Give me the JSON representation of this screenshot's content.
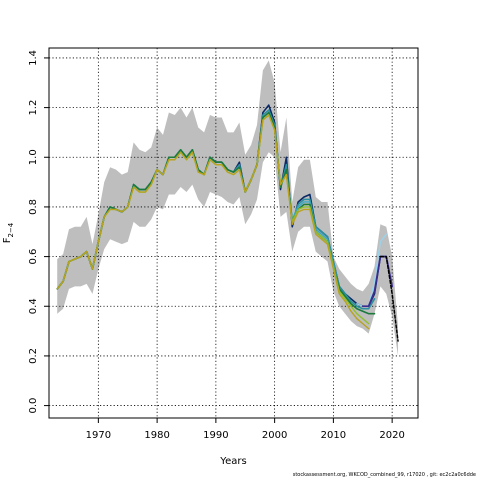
{
  "chart_data": {
    "type": "line",
    "xlabel": "Years",
    "ylabel_main": "F",
    "ylabel_sub": "2−4",
    "xlim": [
      1961.6,
      2024.4
    ],
    "ylim": [
      -0.05,
      1.44
    ],
    "x_ticks": [
      1970,
      1980,
      1990,
      2000,
      2010,
      2020
    ],
    "x_tick_labels": [
      "1970",
      "1980",
      "1990",
      "2000",
      "2010",
      "2020"
    ],
    "y_ticks": [
      0.0,
      0.2,
      0.4,
      0.6,
      0.8,
      1.0,
      1.2,
      1.4
    ],
    "y_tick_labels": [
      "0.0",
      "0.2",
      "0.4",
      "0.6",
      "0.8",
      "1.0",
      "1.2",
      "1.4"
    ],
    "grid": true,
    "band_color": "#bebebe",
    "band": {
      "x": [
        1963,
        1964,
        1965,
        1966,
        1967,
        1968,
        1969,
        1970,
        1971,
        1972,
        1973,
        1974,
        1975,
        1976,
        1977,
        1978,
        1979,
        1980,
        1981,
        1982,
        1983,
        1984,
        1985,
        1986,
        1987,
        1988,
        1989,
        1990,
        1991,
        1992,
        1993,
        1994,
        1995,
        1996,
        1997,
        1998,
        1999,
        2000,
        2001,
        2002,
        2003,
        2004,
        2005,
        2006,
        2007,
        2008,
        2009,
        2010,
        2011,
        2012,
        2013,
        2014,
        2015,
        2016,
        2017,
        2018,
        2019,
        2020,
        2021
      ],
      "lower": [
        0.37,
        0.39,
        0.47,
        0.48,
        0.48,
        0.49,
        0.45,
        0.55,
        0.63,
        0.67,
        0.66,
        0.65,
        0.66,
        0.74,
        0.72,
        0.72,
        0.75,
        0.8,
        0.79,
        0.85,
        0.85,
        0.88,
        0.86,
        0.89,
        0.83,
        0.8,
        0.86,
        0.85,
        0.84,
        0.82,
        0.81,
        0.84,
        0.73,
        0.77,
        0.83,
        0.98,
        1.02,
        1.0,
        0.76,
        0.78,
        0.62,
        0.7,
        0.72,
        0.72,
        0.62,
        0.6,
        0.58,
        0.46,
        0.4,
        0.37,
        0.34,
        0.32,
        0.31,
        0.29,
        0.37,
        0.48,
        0.45,
        0.36,
        0.2
      ],
      "upper": [
        0.59,
        0.61,
        0.71,
        0.72,
        0.72,
        0.76,
        0.65,
        0.77,
        0.9,
        0.96,
        0.95,
        0.93,
        0.94,
        1.06,
        1.03,
        1.02,
        1.04,
        1.12,
        1.09,
        1.18,
        1.17,
        1.2,
        1.16,
        1.2,
        1.12,
        1.1,
        1.17,
        1.16,
        1.16,
        1.1,
        1.1,
        1.14,
        1.01,
        1.05,
        1.13,
        1.35,
        1.39,
        1.3,
        1.02,
        1.16,
        0.82,
        0.96,
        0.99,
        0.99,
        0.84,
        0.82,
        0.82,
        0.6,
        0.55,
        0.52,
        0.49,
        0.47,
        0.46,
        0.49,
        0.56,
        0.73,
        0.72,
        0.6,
        0.32
      ]
    },
    "series": [
      {
        "color": "#0b2a66",
        "width": 1.6,
        "x": [
          1963,
          1964,
          1965,
          1966,
          1967,
          1968,
          1969,
          1970,
          1971,
          1972,
          1973,
          1974,
          1975,
          1976,
          1977,
          1978,
          1979,
          1980,
          1981,
          1982,
          1983,
          1984,
          1985,
          1986,
          1987,
          1988,
          1989,
          1990,
          1991,
          1992,
          1993,
          1994,
          1995,
          1996,
          1997,
          1998,
          1999,
          2000,
          2001,
          2002,
          2003,
          2004,
          2005,
          2006,
          2007,
          2008,
          2009,
          2010,
          2011,
          2012,
          2013,
          2014,
          2015,
          2016,
          2017,
          2018,
          2019
        ],
        "y": [
          0.47,
          0.5,
          0.58,
          0.59,
          0.6,
          0.62,
          0.55,
          0.66,
          0.76,
          0.8,
          0.79,
          0.78,
          0.8,
          0.89,
          0.87,
          0.87,
          0.9,
          0.95,
          0.93,
          1.0,
          1.0,
          1.03,
          1.0,
          1.03,
          0.95,
          0.93,
          1.0,
          0.98,
          0.98,
          0.95,
          0.94,
          0.98,
          0.86,
          0.91,
          0.97,
          1.18,
          1.21,
          1.14,
          0.87,
          1.0,
          0.72,
          0.82,
          0.84,
          0.85,
          0.72,
          0.7,
          0.68,
          0.58,
          0.48,
          0.45,
          0.43,
          0.41,
          0.4,
          0.4,
          0.45,
          0.6,
          0.6
        ]
      },
      {
        "color": "#2a8f9e",
        "width": 1.6,
        "x": [
          1963,
          1964,
          1965,
          1966,
          1967,
          1968,
          1969,
          1970,
          1971,
          1972,
          1973,
          1974,
          1975,
          1976,
          1977,
          1978,
          1979,
          1980,
          1981,
          1982,
          1983,
          1984,
          1985,
          1986,
          1987,
          1988,
          1989,
          1990,
          1991,
          1992,
          1993,
          1994,
          1995,
          1996,
          1997,
          1998,
          1999,
          2000,
          2001,
          2002,
          2003,
          2004,
          2005,
          2006,
          2007,
          2008,
          2009,
          2010,
          2011,
          2012,
          2013,
          2014,
          2015,
          2016,
          2017
        ],
        "y": [
          0.47,
          0.5,
          0.58,
          0.59,
          0.6,
          0.62,
          0.55,
          0.66,
          0.76,
          0.8,
          0.79,
          0.78,
          0.8,
          0.89,
          0.87,
          0.87,
          0.9,
          0.95,
          0.93,
          1.0,
          1.0,
          1.03,
          1.0,
          1.03,
          0.95,
          0.93,
          1.0,
          0.98,
          0.98,
          0.95,
          0.94,
          0.97,
          0.86,
          0.91,
          0.97,
          1.17,
          1.19,
          1.13,
          0.88,
          0.97,
          0.74,
          0.81,
          0.83,
          0.83,
          0.72,
          0.7,
          0.68,
          0.58,
          0.48,
          0.45,
          0.42,
          0.4,
          0.39,
          0.39,
          0.43
        ]
      },
      {
        "color": "#3aa7c4",
        "width": 1.4,
        "x": [
          1963,
          1964,
          1965,
          1966,
          1967,
          1968,
          1969,
          1970,
          1971,
          1972,
          1973,
          1974,
          1975,
          1976,
          1977,
          1978,
          1979,
          1980,
          1981,
          1982,
          1983,
          1984,
          1985,
          1986,
          1987,
          1988,
          1989,
          1990,
          1991,
          1992,
          1993,
          1994,
          1995,
          1996,
          1997,
          1998,
          1999,
          2000,
          2001,
          2002,
          2003,
          2004,
          2005,
          2006,
          2007,
          2008,
          2009,
          2010,
          2011,
          2012,
          2013,
          2014,
          2015,
          2016
        ],
        "y": [
          0.47,
          0.5,
          0.58,
          0.59,
          0.6,
          0.62,
          0.55,
          0.66,
          0.76,
          0.8,
          0.79,
          0.78,
          0.8,
          0.89,
          0.87,
          0.87,
          0.9,
          0.95,
          0.93,
          1.0,
          1.0,
          1.03,
          1.0,
          1.03,
          0.95,
          0.93,
          1.0,
          0.98,
          0.98,
          0.95,
          0.94,
          0.96,
          0.86,
          0.91,
          0.97,
          1.16,
          1.18,
          1.12,
          0.88,
          0.95,
          0.75,
          0.8,
          0.82,
          0.82,
          0.71,
          0.69,
          0.67,
          0.57,
          0.47,
          0.44,
          0.41,
          0.39,
          0.38,
          0.37
        ]
      },
      {
        "color": "#1e7a3a",
        "width": 1.6,
        "x": [
          1963,
          1964,
          1965,
          1966,
          1967,
          1968,
          1969,
          1970,
          1971,
          1972,
          1973,
          1974,
          1975,
          1976,
          1977,
          1978,
          1979,
          1980,
          1981,
          1982,
          1983,
          1984,
          1985,
          1986,
          1987,
          1988,
          1989,
          1990,
          1991,
          1992,
          1993,
          1994,
          1995,
          1996,
          1997,
          1998,
          1999,
          2000,
          2001,
          2002,
          2003,
          2004,
          2005,
          2006,
          2007,
          2008,
          2009,
          2010,
          2011,
          2012,
          2013,
          2014,
          2015,
          2016,
          2017
        ],
        "y": [
          0.47,
          0.5,
          0.58,
          0.59,
          0.6,
          0.62,
          0.55,
          0.66,
          0.76,
          0.8,
          0.79,
          0.78,
          0.8,
          0.89,
          0.87,
          0.87,
          0.9,
          0.95,
          0.93,
          1.0,
          1.0,
          1.03,
          1.0,
          1.03,
          0.95,
          0.93,
          1.0,
          0.98,
          0.98,
          0.95,
          0.94,
          0.96,
          0.86,
          0.91,
          0.97,
          1.16,
          1.18,
          1.12,
          0.88,
          0.95,
          0.74,
          0.79,
          0.81,
          0.81,
          0.7,
          0.68,
          0.66,
          0.56,
          0.47,
          0.44,
          0.41,
          0.39,
          0.38,
          0.37,
          0.37
        ]
      },
      {
        "color": "#8fbf2c",
        "width": 1.4,
        "x": [
          1963,
          1964,
          1965,
          1966,
          1967,
          1968,
          1969,
          1970,
          1971,
          1972,
          1973,
          1974,
          1975,
          1976,
          1977,
          1978,
          1979,
          1980,
          1981,
          1982,
          1983,
          1984,
          1985,
          1986,
          1987,
          1988,
          1989,
          1990,
          1991,
          1992,
          1993,
          1994,
          1995,
          1996,
          1997,
          1998,
          1999,
          2000,
          2001,
          2002,
          2003,
          2004,
          2005,
          2006,
          2007,
          2008,
          2009,
          2010,
          2011,
          2012,
          2013,
          2014,
          2015,
          2016
        ],
        "y": [
          0.47,
          0.5,
          0.58,
          0.59,
          0.6,
          0.62,
          0.55,
          0.66,
          0.76,
          0.79,
          0.79,
          0.78,
          0.8,
          0.88,
          0.86,
          0.86,
          0.89,
          0.95,
          0.93,
          0.99,
          0.99,
          1.02,
          0.99,
          1.02,
          0.94,
          0.93,
          0.99,
          0.97,
          0.97,
          0.94,
          0.93,
          0.95,
          0.86,
          0.91,
          0.97,
          1.15,
          1.17,
          1.11,
          0.89,
          0.93,
          0.74,
          0.79,
          0.8,
          0.8,
          0.7,
          0.68,
          0.66,
          0.56,
          0.46,
          0.43,
          0.4,
          0.37,
          0.35,
          0.33
        ]
      },
      {
        "color": "#b8a21e",
        "width": 1.4,
        "x": [
          1963,
          1964,
          1965,
          1966,
          1967,
          1968,
          1969,
          1970,
          1971,
          1972,
          1973,
          1974,
          1975,
          1976,
          1977,
          1978,
          1979,
          1980,
          1981,
          1982,
          1983,
          1984,
          1985,
          1986,
          1987,
          1988,
          1989,
          1990,
          1991,
          1992,
          1993,
          1994,
          1995,
          1996,
          1997,
          1998,
          1999,
          2000,
          2001,
          2002,
          2003,
          2004,
          2005,
          2006,
          2007,
          2008,
          2009,
          2010,
          2011,
          2012,
          2013,
          2014,
          2015,
          2016
        ],
        "y": [
          0.47,
          0.5,
          0.58,
          0.59,
          0.6,
          0.62,
          0.55,
          0.66,
          0.76,
          0.79,
          0.79,
          0.78,
          0.8,
          0.88,
          0.86,
          0.86,
          0.89,
          0.95,
          0.93,
          0.99,
          0.99,
          1.02,
          0.99,
          1.02,
          0.94,
          0.93,
          0.99,
          0.97,
          0.97,
          0.94,
          0.93,
          0.95,
          0.86,
          0.91,
          0.97,
          1.15,
          1.17,
          1.11,
          0.89,
          0.93,
          0.73,
          0.78,
          0.79,
          0.79,
          0.69,
          0.67,
          0.65,
          0.55,
          0.45,
          0.42,
          0.38,
          0.35,
          0.33,
          0.31
        ]
      },
      {
        "color": "#9ad3ec",
        "width": 1.4,
        "x": [
          2014,
          2015,
          2016,
          2017,
          2018,
          2019
        ],
        "y": [
          0.41,
          0.4,
          0.4,
          0.5,
          0.66,
          0.69
        ]
      },
      {
        "color": "#3a2f8f",
        "width": 1.8,
        "x": [
          2015,
          2016,
          2017,
          2018,
          2019,
          2020
        ],
        "y": [
          0.4,
          0.4,
          0.46,
          0.6,
          0.6,
          0.48
        ]
      },
      {
        "color": "#000000",
        "width": 1.5,
        "dashed": true,
        "x": [
          2018,
          2019,
          2020,
          2021
        ],
        "y": [
          0.6,
          0.6,
          0.45,
          0.26
        ]
      }
    ]
  },
  "footer_text": "stockassessment.org,  WKCOD_combined_99,  r17020 ,  git: ec2c2a0c6dde"
}
